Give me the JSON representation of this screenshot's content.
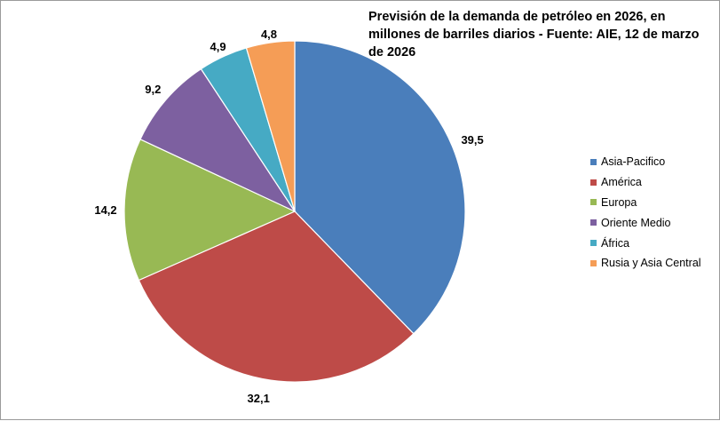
{
  "chart_data": {
    "type": "pie",
    "title": "Previsión de la demanda de petróleo en 2026, en millones de barriles diarios - Fuente: AIE, 12 de marzo de 2026",
    "legend_position": "right",
    "categories": [
      "Asia-Pacifico",
      "América",
      "Europa",
      "Oriente Medio",
      "África",
      "Rusia y Asia Central"
    ],
    "values": [
      39.5,
      32.1,
      14.2,
      9.2,
      4.9,
      4.8
    ],
    "value_labels": [
      "39,5",
      "32,1",
      "14,2",
      "9,2",
      "4,9",
      "4,8"
    ],
    "colors": [
      "#4a7ebb",
      "#be4b48",
      "#98b954",
      "#7d60a0",
      "#46aac4",
      "#f59d56"
    ],
    "start": "12 o'clock",
    "direction": "clockwise"
  }
}
